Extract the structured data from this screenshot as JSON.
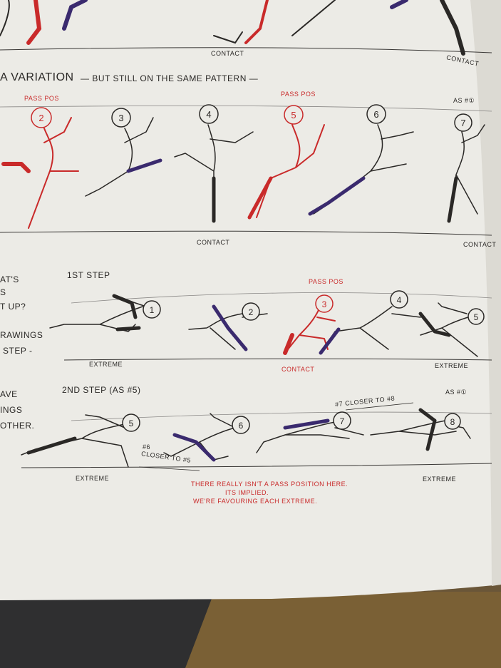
{
  "colors": {
    "paper": "#ecebe6",
    "ink": "#2a2826",
    "red_pencil": "#c92a2a",
    "blue_pencil": "#3a2a6e",
    "table_dark": "#2f2f30",
    "wood": "#7a6035"
  },
  "labels": {
    "row1_contact": "CONTACT",
    "row1_contact_right": "CONTACT",
    "heading_variation": "A VARIATION",
    "heading_variation_note": "— BUT STILL ON THE SAME PATTERN —",
    "row2_pass_pos_left": "PASS POS",
    "row2_pass_pos_right": "PASS POS",
    "row2_as_1": "AS #①",
    "row2_contact_mid": "CONTACT",
    "row2_contact_right": "CONTACT",
    "margin_a1": "AT'S",
    "margin_a2": "S",
    "margin_a3": "T UP?",
    "margin_a4": "RAWINGS",
    "margin_a5": "STEP -",
    "row3_first_step": "1ST STEP",
    "row3_pass_pos": "PASS POS",
    "row3_extreme_left": "EXTREME",
    "row3_contact": "CONTACT",
    "row3_extreme_right": "EXTREME",
    "margin_b1": "AVE",
    "margin_b2": "INGS",
    "margin_b3": "OTHER.",
    "row4_second_step": "2ND STEP (AS #5)",
    "row4_closer_7": "#7 CLOSER TO #8",
    "row4_as_1": "AS #①",
    "row4_closer_6a": "#6",
    "row4_closer_6b": "CLOSER TO #5",
    "row4_extreme_left": "EXTREME",
    "row4_extreme_right": "EXTREME",
    "red_note_1": "THERE REALLY ISN'T A PASS POSITION HERE.",
    "red_note_2": "ITS IMPLIED.",
    "red_note_3": "WE'RE FAVOURING EACH EXTREME."
  },
  "figures": {
    "row2": [
      "2",
      "3",
      "4",
      "5",
      "6",
      "7"
    ],
    "row3": [
      "1",
      "2",
      "3",
      "4",
      "5"
    ],
    "row4": [
      "5",
      "6",
      "7",
      "8"
    ]
  }
}
